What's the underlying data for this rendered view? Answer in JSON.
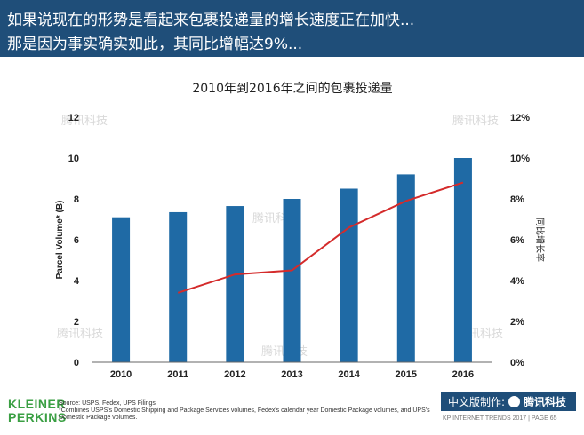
{
  "header": {
    "line1": "如果说现在的形势是看起来包裹投递量的增长速度正在加快...",
    "line2": "那是因为事实确实如此，其同比增幅达9%..."
  },
  "chart_data": {
    "type": "bar",
    "title": "2010年到2016年之间的包裹投递量",
    "categories": [
      "2010",
      "2011",
      "2012",
      "2013",
      "2014",
      "2015",
      "2016"
    ],
    "series": [
      {
        "values": [
          7.1,
          7.35,
          7.65,
          8.0,
          8.5,
          9.2,
          10.0
        ],
        "color": "#1f6aa5"
      },
      {
        "type": "line",
        "values": [
          null,
          3.4,
          4.3,
          4.5,
          6.6,
          7.9,
          8.8
        ],
        "color": "#d42b2b"
      }
    ],
    "ylabel": "Parcel Volume* (B)",
    "y2label": "同比增长率",
    "ylim": [
      0,
      12
    ],
    "y2lim": [
      0,
      12
    ],
    "yticks": [
      "0",
      "2",
      "4",
      "6",
      "8",
      "10",
      "12"
    ],
    "y2ticks": [
      "0%",
      "2%",
      "4%",
      "6%",
      "8%",
      "10%",
      "12%"
    ],
    "grid": false,
    "watermark": "腾讯科技"
  },
  "footer": {
    "logo_line1": "KLEINER",
    "logo_line2": "PERKINS",
    "source": "Source: USPS, Fedex, UPS Filings",
    "note": "*Combines USPS's Domestic Shipping and Package Services volumes, Fedex's calendar year Domestic Package volumes, and UPS's Domestic Package volumes.",
    "brand_prefix": "中文版制作:",
    "brand_name": "腾讯科技",
    "report": "KP INTERNET TRENDS 2017  |  PAGE 65"
  }
}
